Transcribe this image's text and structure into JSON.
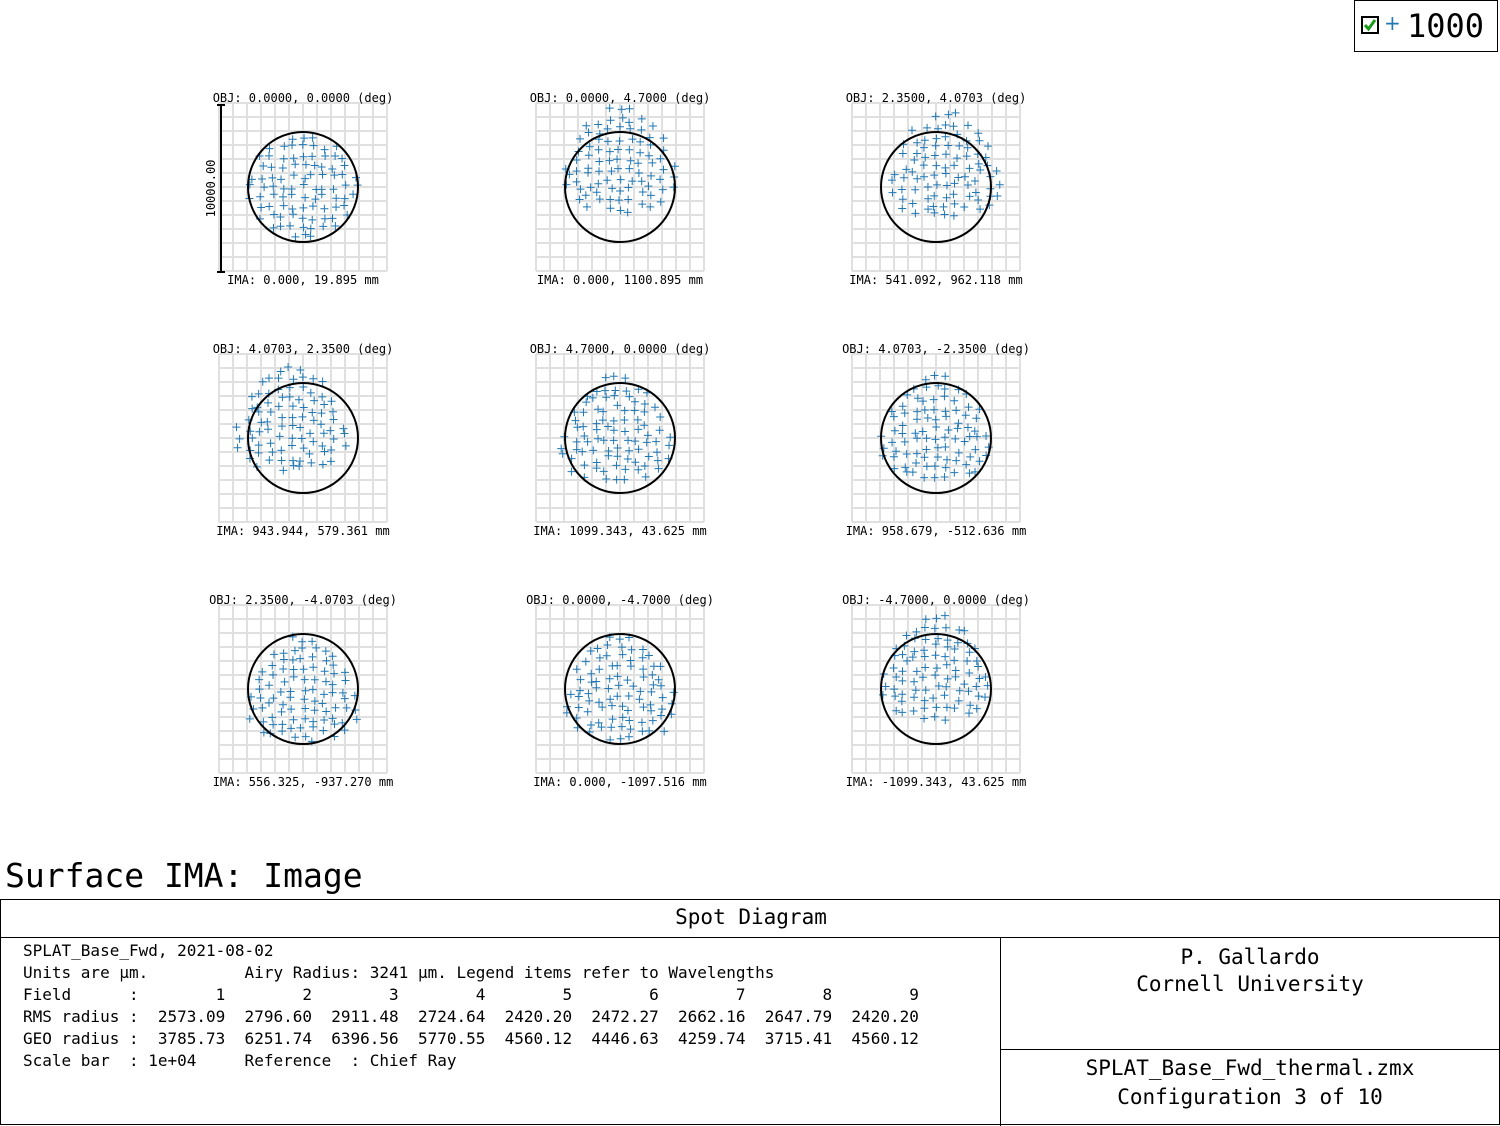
{
  "legend": {
    "wavelength_label": "1000",
    "checked": true
  },
  "surface_title": "Surface IMA: Image",
  "chart_data": {
    "type": "scatter",
    "title": "Spot Diagram",
    "scale_bar_label": "10000.00",
    "units": "µm",
    "airy_radius_um": 3241,
    "marker": "+",
    "marker_color": "#1f77b4",
    "circle_color": "#000000",
    "grid_color": "#e0e0e0",
    "fields": [
      {
        "field": 1,
        "obj": "OBJ: 0.0000, 0.0000 (deg)",
        "ima": "IMA: 0.000, 19.895 mm",
        "rms": 2573.09,
        "geo": 3785.73
      },
      {
        "field": 2,
        "obj": "OBJ: 0.0000, 4.7000 (deg)",
        "ima": "IMA: 0.000, 1100.895 mm",
        "rms": 2796.6,
        "geo": 6251.74
      },
      {
        "field": 3,
        "obj": "OBJ: 2.3500, 4.0703 (deg)",
        "ima": "IMA: 541.092, 962.118 mm",
        "rms": 2911.48,
        "geo": 6396.56
      },
      {
        "field": 4,
        "obj": "OBJ: 4.0703, 2.3500 (deg)",
        "ima": "IMA: 943.944, 579.361 mm",
        "rms": 2724.64,
        "geo": 5770.55
      },
      {
        "field": 5,
        "obj": "OBJ: 4.7000, 0.0000 (deg)",
        "ima": "IMA: 1099.343, 43.625 mm",
        "rms": 2420.2,
        "geo": 4560.12
      },
      {
        "field": 6,
        "obj": "OBJ: 4.0703, -2.3500 (deg)",
        "ima": "IMA: 958.679, -512.636 mm",
        "rms": 2472.27,
        "geo": 4446.63
      },
      {
        "field": 7,
        "obj": "OBJ: 2.3500, -4.0703 (deg)",
        "ima": "IMA: 556.325, -937.270 mm",
        "rms": 2662.16,
        "geo": 4259.74
      },
      {
        "field": 8,
        "obj": "OBJ: 0.0000, -4.7000 (deg)",
        "ima": "IMA: 0.000, -1097.516 mm",
        "rms": 2647.79,
        "geo": 3715.41
      },
      {
        "field": 9,
        "obj": "OBJ: -4.7000, 0.0000 (deg)",
        "ima": "IMA: -1099.343, 43.625 mm",
        "rms": 2420.2,
        "geo": 4560.12
      }
    ]
  },
  "info": {
    "line1": "SPLAT_Base_Fwd, 2021-08-02",
    "line2": "Units are µm.          Airy Radius: 3241 µm. Legend items refer to Wavelengths",
    "line3": "Field      :        1        2        3        4        5        6        7        8        9",
    "line4": "RMS radius :  2573.09  2796.60  2911.48  2724.64  2420.20  2472.27  2662.16  2647.79  2420.20",
    "line5": "GEO radius :  3785.73  6251.74  6396.56  5770.55  4560.12  4446.63  4259.74  3715.41  4560.12",
    "line6": "Scale bar  : 1e+04     Reference  : Chief Ray",
    "author": "P. Gallardo",
    "affiliation": "Cornell University",
    "file_name": "SPLAT_Base_Fwd_thermal.zmx",
    "configuration": "Configuration 3 of 10"
  }
}
